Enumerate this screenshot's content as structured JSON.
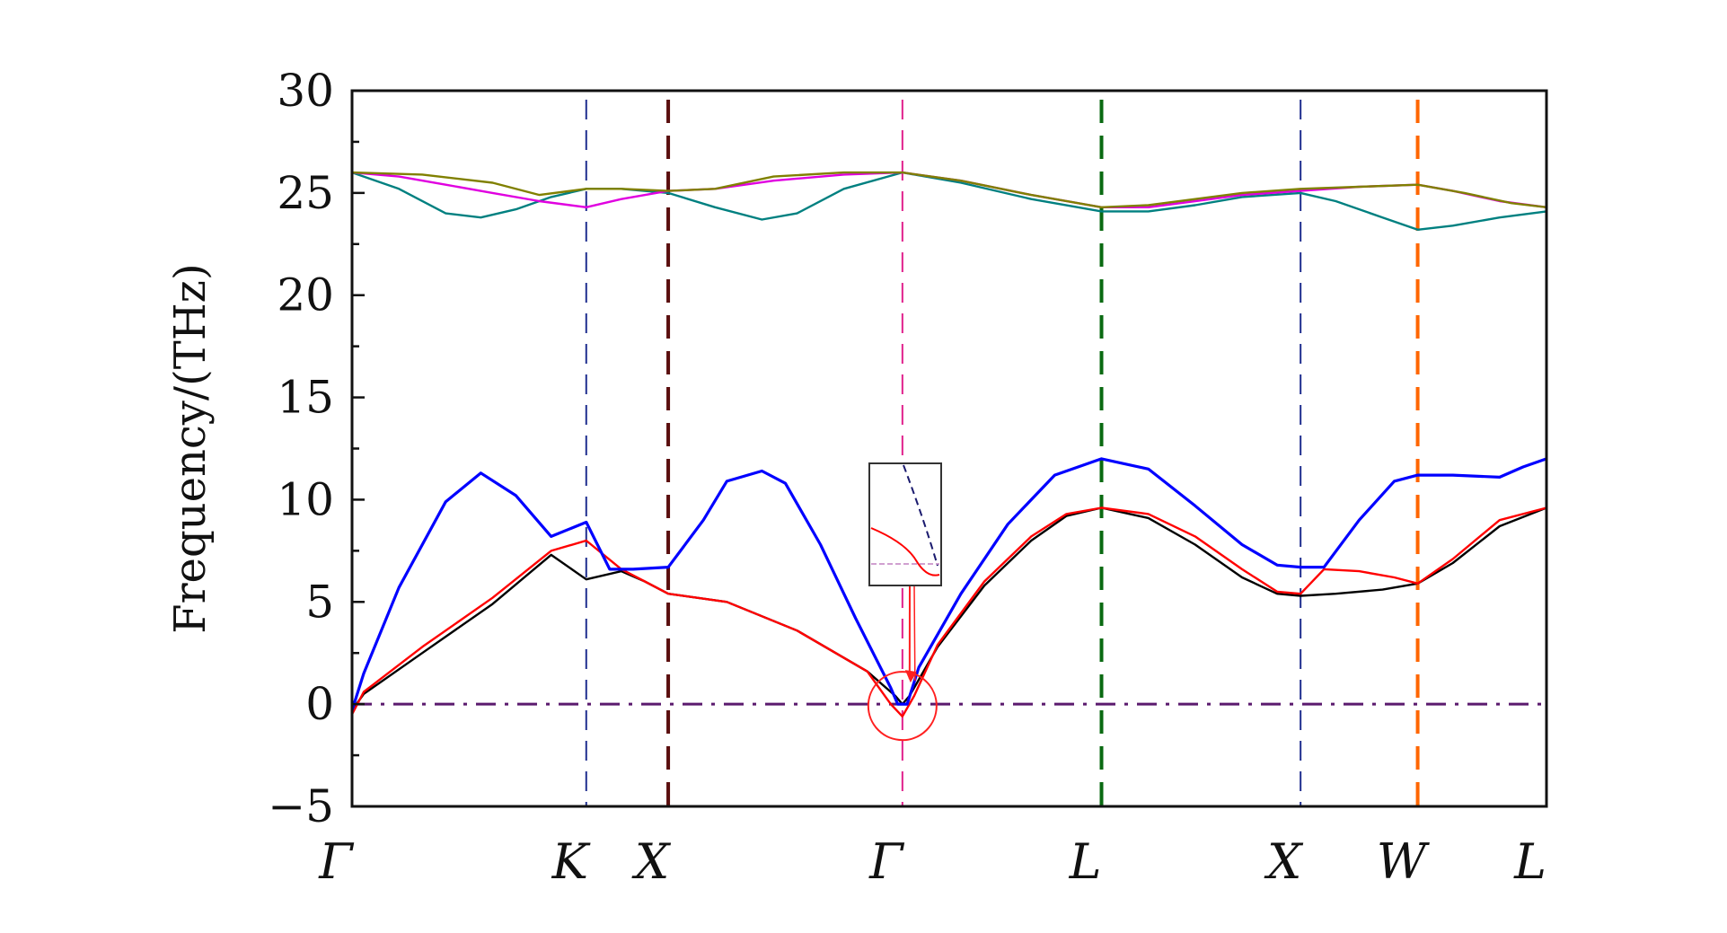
{
  "chart_data": {
    "type": "line",
    "ylabel": "Frequency/(THz)",
    "xlabel": "",
    "ylim": [
      -5,
      30
    ],
    "yticks": [
      -5,
      0,
      5,
      10,
      15,
      20,
      25,
      30
    ],
    "ytick_labels": [
      "−5",
      "0",
      "5",
      "10",
      "15",
      "20",
      "25",
      "30"
    ],
    "xlim": [
      0,
      5.1
    ],
    "high_symmetry_points": [
      {
        "label": "Γ",
        "x": 0,
        "line": false
      },
      {
        "label": "K",
        "x": 1.0,
        "line": true,
        "color": "#1f2e8f"
      },
      {
        "label": "X",
        "x": 1.35,
        "line": true,
        "color": "#5a0e0e"
      },
      {
        "label": "Γ",
        "x": 2.35,
        "line": true,
        "color": "#e0208c"
      },
      {
        "label": "L",
        "x": 3.2,
        "line": true,
        "color": "#0a6a12"
      },
      {
        "label": "X",
        "x": 4.05,
        "line": true,
        "color": "#1f2e8f"
      },
      {
        "label": "W",
        "x": 4.55,
        "line": true,
        "color": "#ff6600"
      },
      {
        "label": "L",
        "x": 5.1,
        "line": false
      }
    ],
    "zero_line": {
      "y": 0,
      "color": "#5b1a6e",
      "style": "dash-dot"
    },
    "grid": false,
    "legend": "none",
    "series": [
      {
        "color": "#000000",
        "x": [
          0,
          0.05,
          0.3,
          0.6,
          0.85,
          1.0,
          1.15,
          1.25,
          1.35,
          1.6,
          1.9,
          2.2,
          2.32,
          2.35,
          2.38,
          2.5,
          2.7,
          2.9,
          3.05,
          3.2,
          3.4,
          3.6,
          3.8,
          3.95,
          4.05,
          4.2,
          4.4,
          4.55,
          4.7,
          4.9,
          5.1
        ],
        "y": [
          -0.3,
          0.5,
          2.5,
          4.9,
          7.3,
          6.1,
          6.5,
          6.0,
          5.4,
          5.0,
          3.6,
          1.6,
          0.4,
          0.0,
          0.4,
          2.8,
          5.8,
          8.0,
          9.2,
          9.6,
          9.1,
          7.8,
          6.2,
          5.4,
          5.3,
          5.4,
          5.6,
          5.9,
          6.9,
          8.7,
          9.6
        ]
      },
      {
        "color": "#ff0000",
        "x": [
          0,
          0.05,
          0.3,
          0.6,
          0.85,
          1.0,
          1.15,
          1.25,
          1.35,
          1.6,
          1.9,
          2.2,
          2.3,
          2.35,
          2.4,
          2.5,
          2.7,
          2.9,
          3.05,
          3.2,
          3.4,
          3.6,
          3.8,
          3.95,
          4.05,
          4.15,
          4.3,
          4.45,
          4.55,
          4.7,
          4.9,
          5.1
        ],
        "y": [
          -0.5,
          0.6,
          2.8,
          5.2,
          7.5,
          8.0,
          6.6,
          6.0,
          5.4,
          5.0,
          3.6,
          1.6,
          0.0,
          -0.6,
          0.4,
          2.9,
          6.0,
          8.2,
          9.3,
          9.6,
          9.3,
          8.2,
          6.6,
          5.5,
          5.4,
          6.6,
          6.5,
          6.2,
          5.9,
          7.1,
          9.0,
          9.6
        ]
      },
      {
        "color": "#0000ff",
        "x": [
          0,
          0.05,
          0.2,
          0.4,
          0.55,
          0.7,
          0.85,
          1.0,
          1.1,
          1.2,
          1.35,
          1.5,
          1.6,
          1.75,
          1.85,
          2.0,
          2.15,
          2.3,
          2.33,
          2.35,
          2.37,
          2.42,
          2.6,
          2.8,
          3.0,
          3.2,
          3.4,
          3.6,
          3.8,
          3.95,
          4.05,
          4.15,
          4.3,
          4.45,
          4.55,
          4.7,
          4.9,
          5.0,
          5.1
        ],
        "y": [
          -0.3,
          1.5,
          5.7,
          9.9,
          11.3,
          10.2,
          8.2,
          8.9,
          6.6,
          6.6,
          6.7,
          9.0,
          10.9,
          11.4,
          10.8,
          7.8,
          4.2,
          0.8,
          0.0,
          0.0,
          0.0,
          1.8,
          5.4,
          8.8,
          11.2,
          12.0,
          11.5,
          9.7,
          7.8,
          6.8,
          6.7,
          6.7,
          9.0,
          10.9,
          11.2,
          11.2,
          11.1,
          11.6,
          12.0
        ]
      },
      {
        "color": "#008080",
        "x": [
          0,
          0.2,
          0.4,
          0.55,
          0.7,
          0.85,
          1.0,
          1.15,
          1.35,
          1.55,
          1.75,
          1.9,
          2.1,
          2.35,
          2.6,
          2.9,
          3.2,
          3.4,
          3.6,
          3.8,
          4.05,
          4.2,
          4.4,
          4.55,
          4.7,
          4.9,
          5.1
        ],
        "y": [
          26.0,
          25.2,
          24.0,
          23.8,
          24.2,
          24.8,
          25.2,
          25.2,
          25.0,
          24.3,
          23.7,
          24.0,
          25.2,
          26.0,
          25.5,
          24.7,
          24.1,
          24.1,
          24.4,
          24.8,
          25.0,
          24.6,
          23.8,
          23.2,
          23.4,
          23.8,
          24.1
        ]
      },
      {
        "color": "#e000e0",
        "x": [
          0,
          0.2,
          0.4,
          0.6,
          0.8,
          1.0,
          1.15,
          1.35,
          1.55,
          1.8,
          2.1,
          2.35,
          2.6,
          2.9,
          3.2,
          3.4,
          3.6,
          3.8,
          4.05,
          4.3,
          4.55,
          4.7,
          4.9,
          5.1
        ],
        "y": [
          26.0,
          25.8,
          25.4,
          25.0,
          24.6,
          24.3,
          24.7,
          25.1,
          25.2,
          25.6,
          25.9,
          26.0,
          25.6,
          24.9,
          24.3,
          24.3,
          24.6,
          24.9,
          25.1,
          25.3,
          25.4,
          25.1,
          24.6,
          24.3
        ]
      },
      {
        "color": "#808000",
        "x": [
          0,
          0.3,
          0.6,
          0.8,
          1.0,
          1.15,
          1.35,
          1.55,
          1.8,
          2.1,
          2.35,
          2.6,
          2.9,
          3.2,
          3.4,
          3.6,
          3.8,
          4.05,
          4.3,
          4.55,
          4.75,
          4.95,
          5.1
        ],
        "y": [
          26.0,
          25.9,
          25.5,
          24.9,
          25.2,
          25.2,
          25.1,
          25.2,
          25.8,
          26.0,
          26.0,
          25.6,
          24.9,
          24.3,
          24.4,
          24.7,
          25.0,
          25.2,
          25.3,
          25.4,
          25.0,
          24.5,
          24.3
        ]
      }
    ]
  }
}
